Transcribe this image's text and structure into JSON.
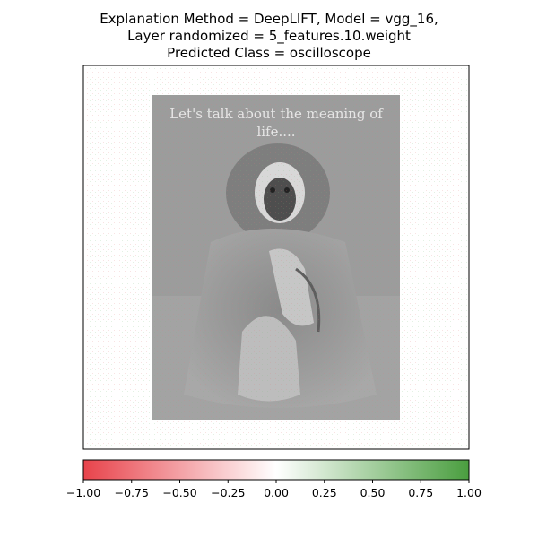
{
  "title_lines": [
    "Explanation Method = DeepLIFT, Model = vgg_16,",
    "Layer randomized = 5_features.10.weight",
    "Predicted Class = oscilloscope"
  ],
  "image_caption": "Let's talk about the meaning of life....",
  "colors": {
    "negative": "#e8434b",
    "neutral": "#ffffff",
    "positive": "#4a9e3f",
    "image_gray": "#9c9c9c"
  },
  "chart_data": {
    "type": "heatmap",
    "title": "Explanation Method = DeepLIFT, Model = vgg_16, Layer randomized = 5_features.10.weight Predicted Class = oscilloscope",
    "colorbar": {
      "range": [
        -1.0,
        1.0
      ],
      "ticks": [
        -1.0,
        -0.75,
        -0.5,
        -0.25,
        0.0,
        0.25,
        0.5,
        0.75,
        1.0
      ],
      "tick_labels": [
        "−1.00",
        "−0.75",
        "−0.50",
        "−0.25",
        "0.00",
        "0.25",
        "0.50",
        "0.75",
        "1.00"
      ],
      "colormap": "red-white-green",
      "orientation": "horizontal"
    },
    "image_content": "grayscale photo of a gibbon sitting, attribution overlay mostly near zero with sparse red/green speckles"
  }
}
